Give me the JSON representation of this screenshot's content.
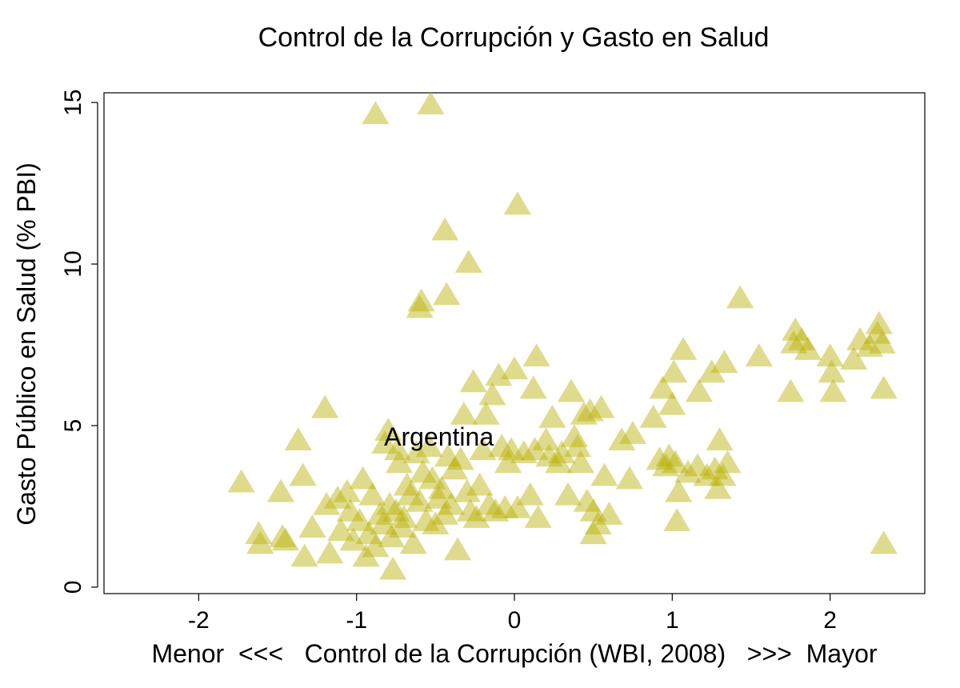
{
  "chart_data": {
    "type": "scatter",
    "title": "Control de la Corrupción y Gasto en Salud",
    "xlabel": "Menor  <<<   Control de la Corrupción (WBI, 2008)   >>>  Mayor",
    "ylabel": "Gasto Público en Salud (% PBI)",
    "xlim": [
      -2.6,
      2.6
    ],
    "ylim": [
      -0.2,
      15.3
    ],
    "xticks": [
      -2,
      -1,
      0,
      1,
      2
    ],
    "xtick_labels": [
      "-2",
      "-1",
      "0",
      "1",
      "2"
    ],
    "yticks": [
      0,
      5,
      10,
      15
    ],
    "ytick_labels": [
      "0",
      "5",
      "10",
      "15"
    ],
    "grid": false,
    "marker": "triangle",
    "color": "#b8b000",
    "annotations": [
      {
        "text": "Argentina",
        "x": -0.8,
        "y": 4.6
      }
    ],
    "points": [
      [
        -0.88,
        14.6
      ],
      [
        -0.53,
        14.9
      ],
      [
        0.02,
        11.8
      ],
      [
        -0.44,
        11.0
      ],
      [
        -0.29,
        10.0
      ],
      [
        -0.59,
        8.8
      ],
      [
        -0.6,
        8.6
      ],
      [
        -0.43,
        9.0
      ],
      [
        1.43,
        8.9
      ],
      [
        -1.73,
        3.2
      ],
      [
        -1.62,
        1.6
      ],
      [
        -1.61,
        1.3
      ],
      [
        -1.48,
        2.9
      ],
      [
        -1.47,
        1.5
      ],
      [
        -1.45,
        1.4
      ],
      [
        -1.37,
        4.5
      ],
      [
        -1.34,
        3.4
      ],
      [
        -1.33,
        0.9
      ],
      [
        -1.28,
        1.8
      ],
      [
        -1.2,
        5.5
      ],
      [
        -1.19,
        2.5
      ],
      [
        -1.17,
        1.0
      ],
      [
        -1.12,
        2.7
      ],
      [
        -1.1,
        1.7
      ],
      [
        -1.06,
        2.9
      ],
      [
        -1.04,
        2.3
      ],
      [
        -1.02,
        1.4
      ],
      [
        -0.98,
        2.0
      ],
      [
        -0.96,
        3.3
      ],
      [
        -0.94,
        0.9
      ],
      [
        -0.92,
        1.6
      ],
      [
        -0.9,
        2.8
      ],
      [
        -0.88,
        1.2
      ],
      [
        -0.85,
        2.2
      ],
      [
        -0.83,
        1.9
      ],
      [
        -0.82,
        4.4
      ],
      [
        -0.8,
        4.8
      ],
      [
        -0.79,
        2.5
      ],
      [
        -0.78,
        1.5
      ],
      [
        -0.77,
        0.5
      ],
      [
        -0.75,
        2.3
      ],
      [
        -0.74,
        4.2
      ],
      [
        -0.73,
        3.8
      ],
      [
        -0.71,
        1.8
      ],
      [
        -0.7,
        2.1
      ],
      [
        -0.68,
        3.1
      ],
      [
        -0.66,
        2.8
      ],
      [
        -0.64,
        1.3
      ],
      [
        -0.62,
        4.1
      ],
      [
        -0.6,
        2.6
      ],
      [
        -0.58,
        3.5
      ],
      [
        -0.56,
        2.0
      ],
      [
        -0.54,
        4.3
      ],
      [
        -0.52,
        3.3
      ],
      [
        -0.5,
        1.9
      ],
      [
        -0.48,
        2.7
      ],
      [
        -0.46,
        3.0
      ],
      [
        -0.44,
        2.2
      ],
      [
        -0.42,
        4.0
      ],
      [
        -0.4,
        2.5
      ],
      [
        -0.38,
        3.6
      ],
      [
        -0.36,
        1.1
      ],
      [
        -0.34,
        3.9
      ],
      [
        -0.32,
        5.3
      ],
      [
        -0.3,
        2.9
      ],
      [
        -0.28,
        2.3
      ],
      [
        -0.26,
        6.3
      ],
      [
        -0.24,
        2.1
      ],
      [
        -0.22,
        3.1
      ],
      [
        -0.2,
        4.2
      ],
      [
        -0.18,
        5.3
      ],
      [
        -0.16,
        2.5
      ],
      [
        -0.14,
        5.9
      ],
      [
        -0.12,
        2.3
      ],
      [
        -0.1,
        6.5
      ],
      [
        -0.08,
        4.3
      ],
      [
        -0.06,
        2.4
      ],
      [
        -0.04,
        3.8
      ],
      [
        -0.02,
        4.2
      ],
      [
        0.0,
        6.7
      ],
      [
        0.02,
        2.4
      ],
      [
        0.06,
        4.1
      ],
      [
        0.1,
        2.8
      ],
      [
        0.12,
        6.1
      ],
      [
        0.13,
        4.2
      ],
      [
        0.14,
        7.1
      ],
      [
        0.15,
        2.1
      ],
      [
        0.2,
        4.5
      ],
      [
        0.22,
        4.0
      ],
      [
        0.24,
        5.2
      ],
      [
        0.28,
        3.8
      ],
      [
        0.3,
        4.1
      ],
      [
        0.34,
        2.8
      ],
      [
        0.36,
        6.0
      ],
      [
        0.38,
        4.6
      ],
      [
        0.4,
        4.3
      ],
      [
        0.42,
        3.8
      ],
      [
        0.44,
        5.3
      ],
      [
        0.46,
        2.6
      ],
      [
        0.48,
        5.4
      ],
      [
        0.5,
        2.3
      ],
      [
        0.5,
        1.6
      ],
      [
        0.53,
        1.9
      ],
      [
        0.55,
        5.5
      ],
      [
        0.57,
        3.4
      ],
      [
        0.6,
        2.2
      ],
      [
        0.68,
        4.5
      ],
      [
        0.73,
        3.3
      ],
      [
        0.75,
        4.7
      ],
      [
        0.88,
        5.2
      ],
      [
        0.92,
        3.9
      ],
      [
        0.94,
        6.1
      ],
      [
        0.96,
        3.7
      ],
      [
        0.98,
        4.0
      ],
      [
        1.0,
        5.6
      ],
      [
        1.01,
        6.6
      ],
      [
        1.02,
        3.8
      ],
      [
        1.03,
        2.0
      ],
      [
        1.04,
        2.9
      ],
      [
        1.07,
        7.3
      ],
      [
        1.1,
        3.5
      ],
      [
        1.16,
        3.7
      ],
      [
        1.17,
        6.0
      ],
      [
        1.22,
        3.4
      ],
      [
        1.25,
        6.6
      ],
      [
        1.27,
        3.6
      ],
      [
        1.29,
        3.0
      ],
      [
        1.3,
        4.5
      ],
      [
        1.32,
        3.4
      ],
      [
        1.33,
        6.9
      ],
      [
        1.35,
        3.8
      ],
      [
        1.55,
        7.1
      ],
      [
        1.75,
        6.0
      ],
      [
        1.77,
        7.5
      ],
      [
        1.78,
        7.9
      ],
      [
        1.82,
        7.6
      ],
      [
        1.86,
        7.3
      ],
      [
        2.0,
        7.1
      ],
      [
        2.01,
        6.6
      ],
      [
        2.02,
        6.0
      ],
      [
        2.15,
        7.0
      ],
      [
        2.19,
        7.6
      ],
      [
        2.25,
        7.4
      ],
      [
        2.3,
        7.8
      ],
      [
        2.31,
        8.1
      ],
      [
        2.33,
        7.5
      ],
      [
        2.34,
        6.1
      ],
      [
        2.34,
        1.3
      ]
    ]
  }
}
